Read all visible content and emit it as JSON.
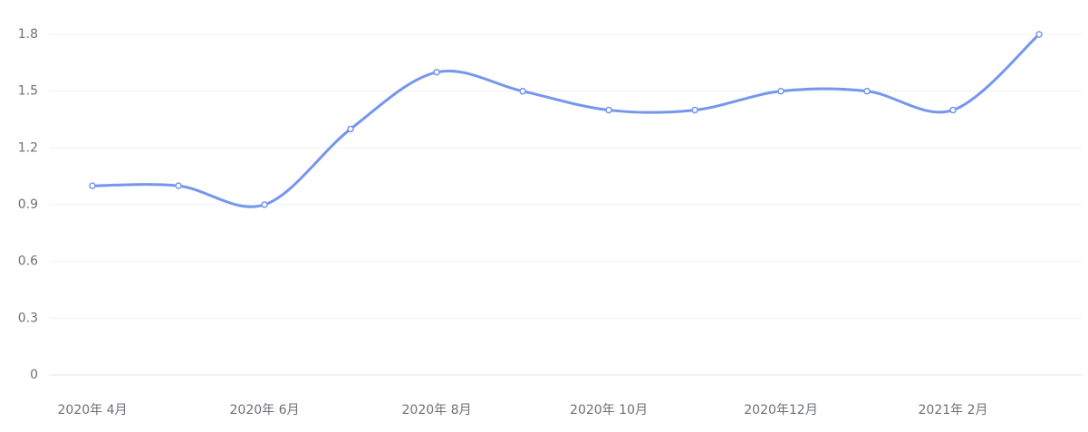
{
  "chart_data": {
    "type": "line",
    "categories": [
      "2020年 4月",
      null,
      "2020年 6月",
      null,
      "2020年 8月",
      null,
      "2020年 10月",
      null,
      "2020年12月",
      null,
      "2021年 2月",
      null
    ],
    "series": [
      {
        "color": "#7596ee",
        "values": [
          1.0,
          1.0,
          0.9,
          1.3,
          1.6,
          1.5,
          1.4,
          1.4,
          1.5,
          1.5,
          1.4,
          1.8
        ]
      }
    ],
    "ylim": [
      0,
      1.8
    ],
    "yticks": [
      0,
      0.3,
      0.6,
      0.9,
      1.2,
      1.5,
      1.8
    ],
    "grid": true,
    "smooth": true
  }
}
